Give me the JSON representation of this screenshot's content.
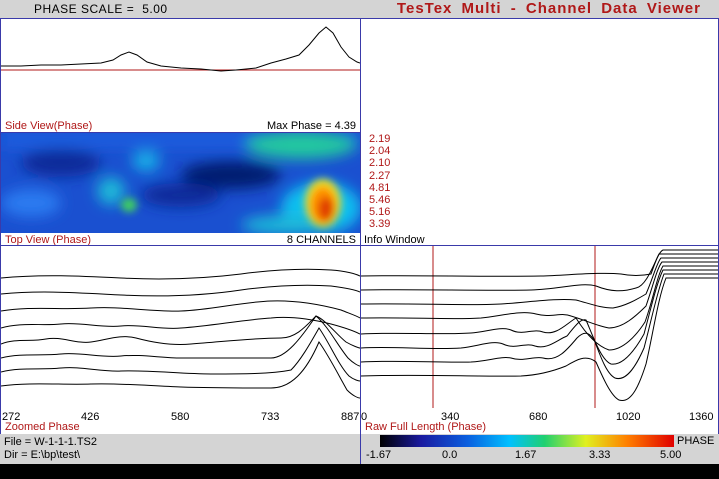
{
  "header": {
    "phase_scale_label": "PHASE SCALE =",
    "phase_scale_value": "5.00",
    "app_title": "TesTex  Multi - Channel  Data  Viewer"
  },
  "side_view": {
    "label": "Side View(Phase)",
    "max_phase": "Max Phase = 4.39"
  },
  "top_view": {
    "label": "Top View (Phase)",
    "channels": "8 CHANNELS"
  },
  "info_window": {
    "label": "Info Window",
    "values": [
      "2.19",
      "2.04",
      "2.10",
      "2.27",
      "4.81",
      "5.46",
      "5.16",
      "3.39"
    ]
  },
  "zoomed": {
    "label": "Zoomed Phase",
    "ticks": [
      "272",
      "426",
      "580",
      "733",
      "887"
    ]
  },
  "raw": {
    "label": "Raw Full Length (Phase)",
    "ticks": [
      "0",
      "340",
      "680",
      "1020",
      "1360"
    ]
  },
  "file_info": {
    "file": "File = W-1-1-1.TS2",
    "dir": "Dir = E:\\bp\\test\\"
  },
  "color_scale": {
    "title": "PHASE",
    "ticks": [
      "-1.67",
      "0.0",
      "1.67",
      "3.33",
      "5.00"
    ],
    "colors": [
      "#000000",
      "#1a1aa0",
      "#0a60e0",
      "#00c0ff",
      "#20d070",
      "#e0f020",
      "#ff8000",
      "#e00000"
    ]
  }
}
